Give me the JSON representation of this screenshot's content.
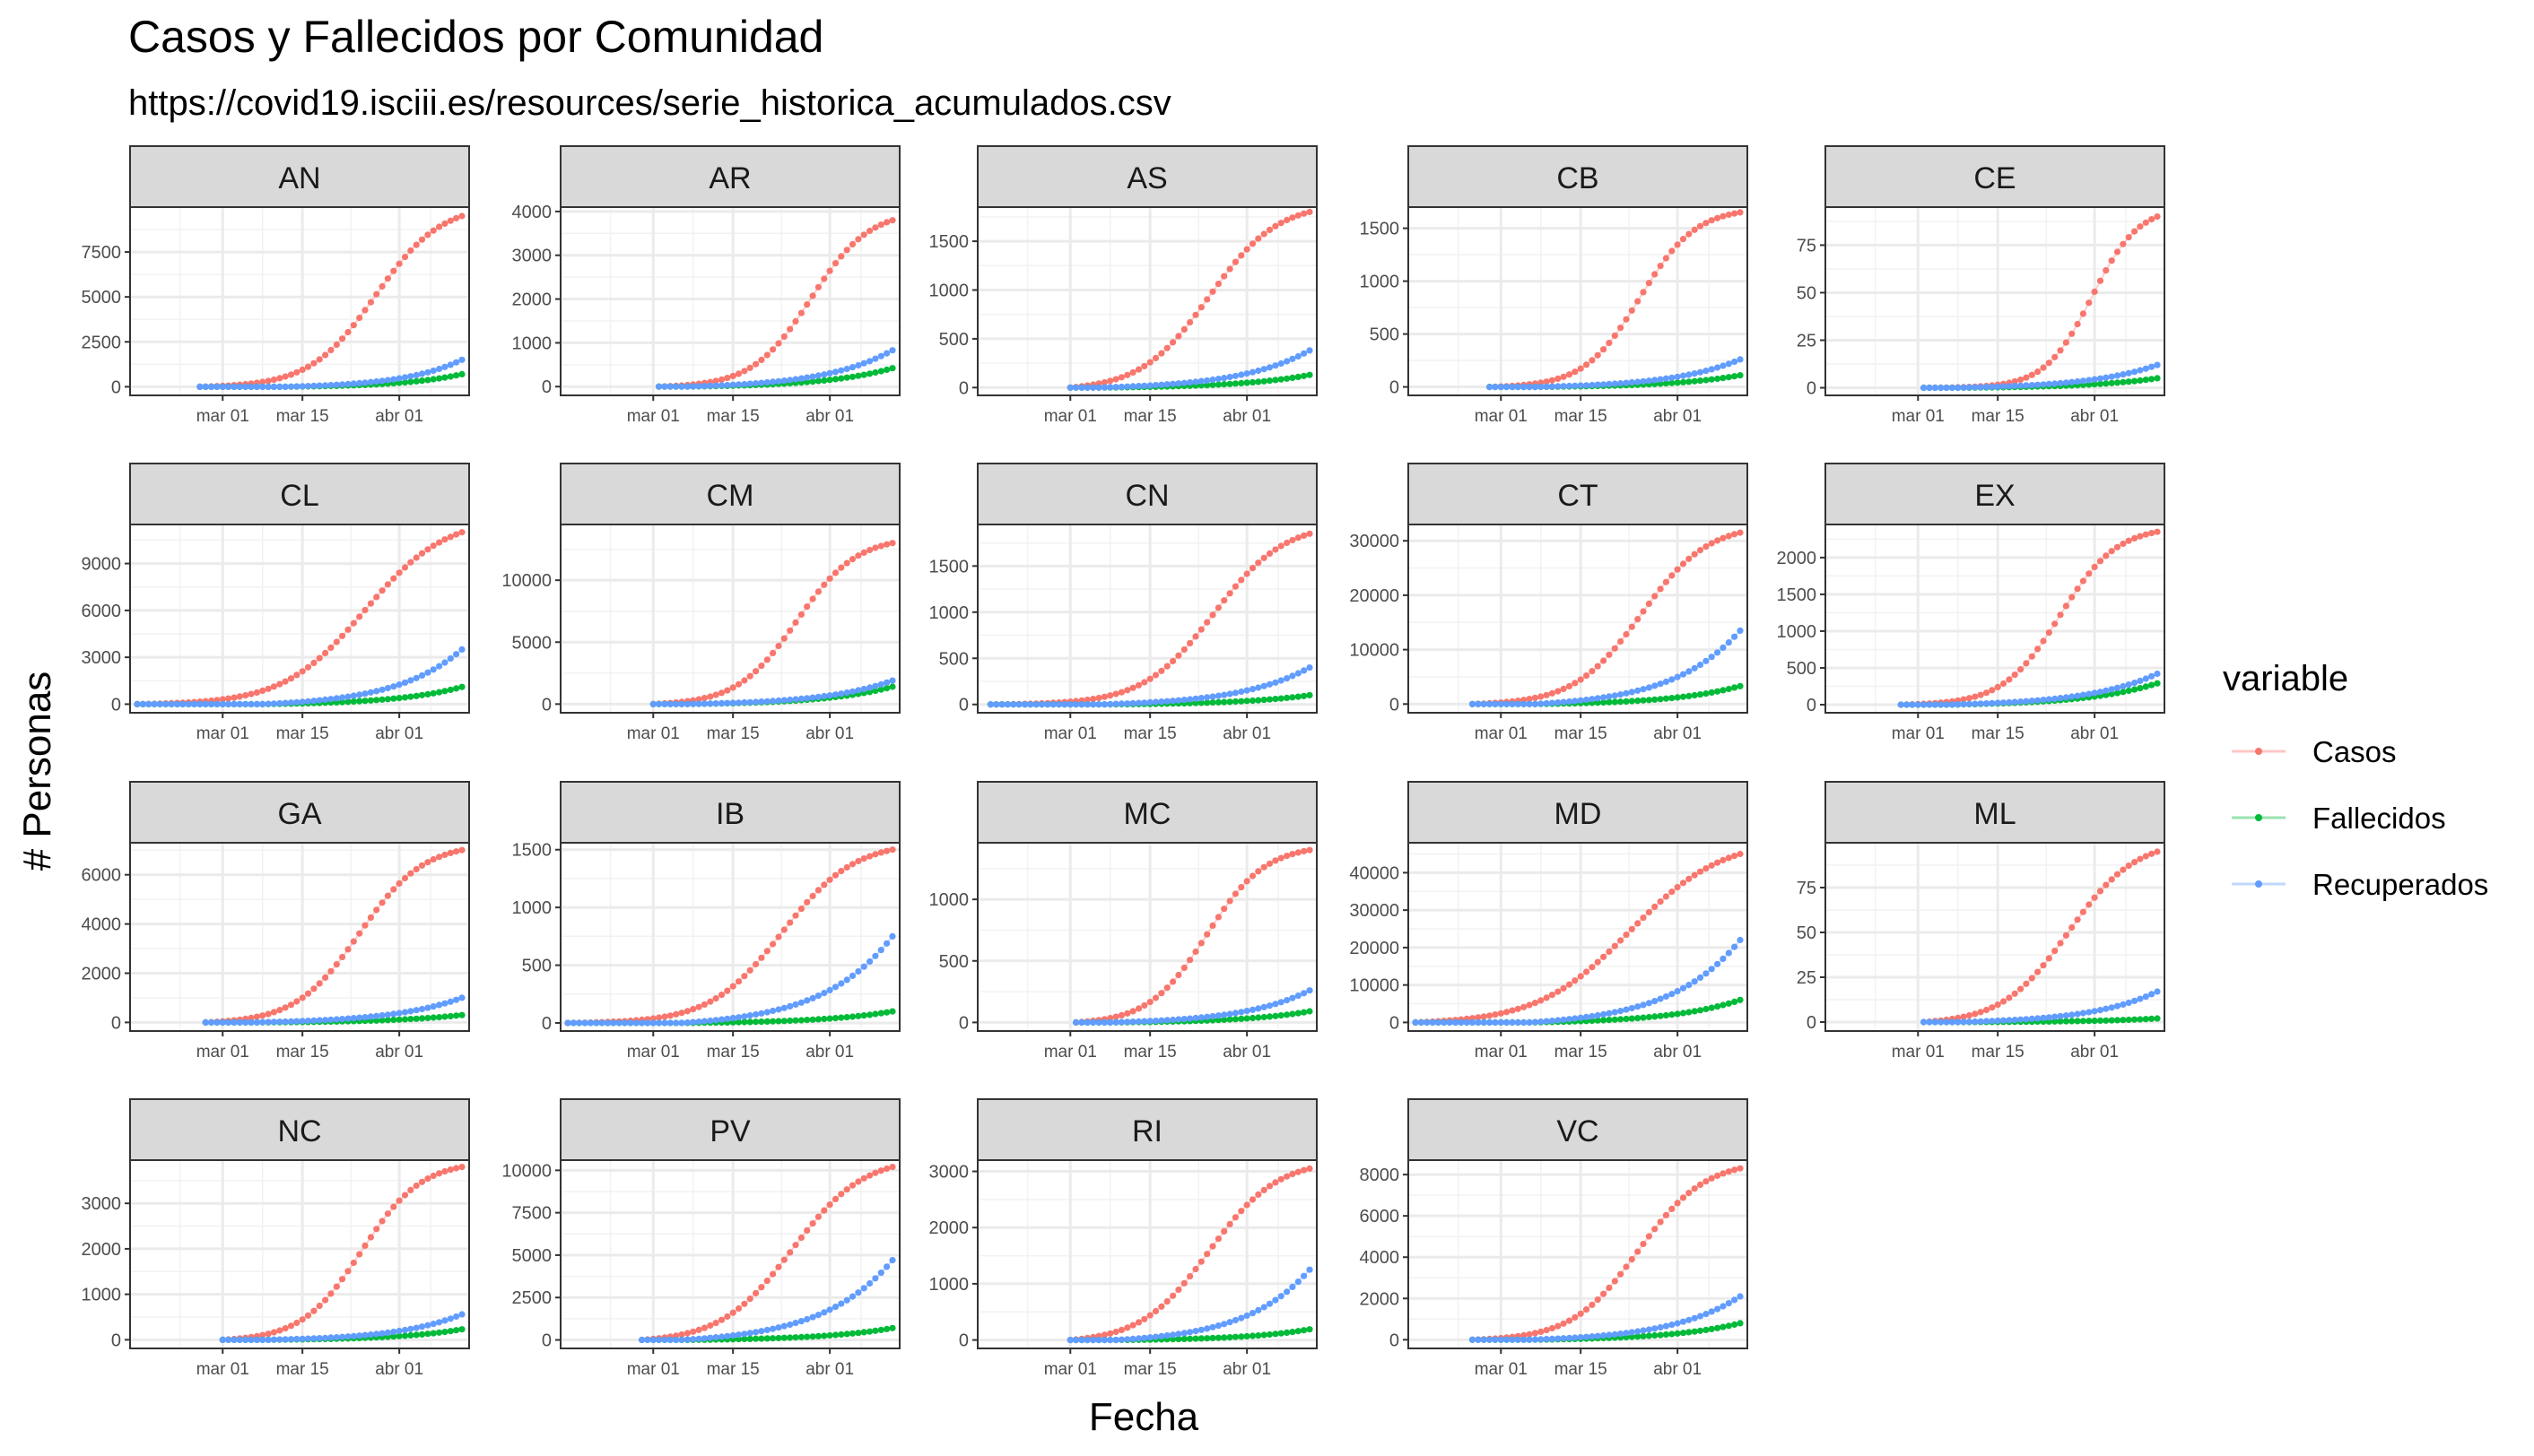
{
  "chart_data": {
    "type": "line",
    "title": "Casos y Fallecidos por Comunidad",
    "subtitle": "https://covid19.isciii.es/resources/serie_historica_acumulados.csv",
    "xlabel": "Fecha",
    "ylabel": "# Personas",
    "x_ticks": [
      "mar 01",
      "mar 15",
      "abr 01"
    ],
    "x_range": [
      "2020-02-15",
      "2020-04-12"
    ],
    "grid": true,
    "legend": {
      "title": "variable",
      "position": "right",
      "entries": [
        {
          "name": "Casos",
          "color": "#F8766D"
        },
        {
          "name": "Fallecidos",
          "color": "#00BA38"
        },
        {
          "name": "Recuperados",
          "color": "#619CFF"
        }
      ]
    },
    "panels": [
      {
        "label": "AN",
        "start": "2020-02-26",
        "y_ticks": [
          0,
          2500,
          5000,
          7500
        ],
        "ylim": [
          -480,
          10000
        ],
        "series": {
          "Casos": {
            "end": 9500,
            "shape": "sig",
            "mid": 0.67,
            "k": 8
          },
          "Fallecidos": {
            "end": 700,
            "shape": "exp",
            "start": "2020-03-12"
          },
          "Recuperados": {
            "end": 1500,
            "shape": "exp",
            "start": "2020-03-12"
          }
        }
      },
      {
        "label": "AR",
        "start": "2020-03-02",
        "y_ticks": [
          0,
          1000,
          2000,
          3000,
          4000
        ],
        "ylim": [
          -200,
          4100
        ],
        "series": {
          "Casos": {
            "end": 3800,
            "shape": "sig",
            "mid": 0.65,
            "k": 8
          },
          "Fallecidos": {
            "end": 420,
            "shape": "exp",
            "start": "2020-03-07"
          },
          "Recuperados": {
            "end": 830,
            "shape": "exp",
            "start": "2020-03-07"
          }
        }
      },
      {
        "label": "AS",
        "start": "2020-03-01",
        "y_ticks": [
          0,
          500,
          1000,
          1500
        ],
        "ylim": [
          -80,
          1850
        ],
        "series": {
          "Casos": {
            "end": 1800,
            "shape": "sig",
            "mid": 0.58,
            "k": 7
          },
          "Fallecidos": {
            "end": 130,
            "shape": "exp",
            "start": "2020-03-06"
          },
          "Recuperados": {
            "end": 380,
            "shape": "exp",
            "start": "2020-03-06"
          }
        }
      },
      {
        "label": "CB",
        "start": "2020-02-28",
        "y_ticks": [
          0,
          500,
          1000,
          1500
        ],
        "ylim": [
          -80,
          1700
        ],
        "series": {
          "Casos": {
            "end": 1650,
            "shape": "sig",
            "mid": 0.6,
            "k": 9
          },
          "Fallecidos": {
            "end": 110,
            "shape": "exp",
            "start": "2020-03-07"
          },
          "Recuperados": {
            "end": 260,
            "shape": "exp",
            "start": "2020-03-07"
          }
        }
      },
      {
        "label": "CE",
        "start": "2020-03-02",
        "y_ticks": [
          0,
          25,
          50,
          75
        ],
        "ylim": [
          -4,
          95
        ],
        "series": {
          "Casos": {
            "end": 90,
            "shape": "sig",
            "mid": 0.72,
            "k": 10
          },
          "Fallecidos": {
            "end": 5,
            "shape": "exp",
            "start": "2020-03-07"
          },
          "Recuperados": {
            "end": 12,
            "shape": "exp",
            "start": "2020-03-07"
          }
        }
      },
      {
        "label": "CL",
        "start": "2020-02-15",
        "y_ticks": [
          0,
          3000,
          6000,
          9000
        ],
        "ylim": [
          -550,
          11500
        ],
        "series": {
          "Casos": {
            "end": 11000,
            "shape": "sig",
            "mid": 0.7,
            "k": 8
          },
          "Fallecidos": {
            "end": 1100,
            "shape": "exp",
            "start": "2020-03-08"
          },
          "Recuperados": {
            "end": 3500,
            "shape": "exp",
            "start": "2020-03-08"
          }
        }
      },
      {
        "label": "CM",
        "start": "2020-03-01",
        "y_ticks": [
          0,
          5000,
          10000
        ],
        "ylim": [
          -700,
          14500
        ],
        "series": {
          "Casos": {
            "end": 13000,
            "shape": "sig",
            "mid": 0.6,
            "k": 8
          },
          "Fallecidos": {
            "end": 1400,
            "shape": "exp",
            "start": "2020-03-07"
          },
          "Recuperados": {
            "end": 1900,
            "shape": "exp",
            "start": "2020-03-07"
          }
        }
      },
      {
        "label": "CN",
        "start": "2020-02-16",
        "y_ticks": [
          0,
          500,
          1000,
          1500
        ],
        "ylim": [
          -90,
          1950
        ],
        "series": {
          "Casos": {
            "end": 1850,
            "shape": "sig",
            "mid": 0.7,
            "k": 9
          },
          "Fallecidos": {
            "end": 100,
            "shape": "exp",
            "start": "2020-03-06"
          },
          "Recuperados": {
            "end": 400,
            "shape": "exp",
            "start": "2020-03-06"
          }
        }
      },
      {
        "label": "CT",
        "start": "2020-02-25",
        "y_ticks": [
          0,
          10000,
          20000,
          30000
        ],
        "ylim": [
          -1600,
          33000
        ],
        "series": {
          "Casos": {
            "end": 31500,
            "shape": "sig",
            "mid": 0.63,
            "k": 8
          },
          "Fallecidos": {
            "end": 3300,
            "shape": "exp",
            "start": "2020-03-07"
          },
          "Recuperados": {
            "end": 13500,
            "shape": "exp",
            "start": "2020-03-07"
          }
        }
      },
      {
        "label": "EX",
        "start": "2020-02-27",
        "y_ticks": [
          0,
          500,
          1000,
          1500,
          2000
        ],
        "ylim": [
          -110,
          2450
        ],
        "series": {
          "Casos": {
            "end": 2350,
            "shape": "sig",
            "mid": 0.62,
            "k": 9
          },
          "Fallecidos": {
            "end": 290,
            "shape": "exp",
            "start": "2020-03-06"
          },
          "Recuperados": {
            "end": 420,
            "shape": "exp",
            "start": "2020-03-06"
          }
        }
      },
      {
        "label": "GA",
        "start": "2020-02-27",
        "y_ticks": [
          0,
          2000,
          4000,
          6000
        ],
        "ylim": [
          -350,
          7300
        ],
        "series": {
          "Casos": {
            "end": 7000,
            "shape": "sig",
            "mid": 0.6,
            "k": 8
          },
          "Fallecidos": {
            "end": 300,
            "shape": "exp",
            "start": "2020-03-06"
          },
          "Recuperados": {
            "end": 1000,
            "shape": "exp",
            "start": "2020-03-06"
          }
        }
      },
      {
        "label": "IB",
        "start": "2020-02-15",
        "y_ticks": [
          0,
          500,
          1000,
          1500
        ],
        "ylim": [
          -70,
          1560
        ],
        "series": {
          "Casos": {
            "end": 1500,
            "shape": "sig",
            "mid": 0.66,
            "k": 9
          },
          "Fallecidos": {
            "end": 100,
            "shape": "exp",
            "start": "2020-03-06"
          },
          "Recuperados": {
            "end": 750,
            "shape": "exp",
            "start": "2020-03-06"
          }
        }
      },
      {
        "label": "MC",
        "start": "2020-03-02",
        "y_ticks": [
          0,
          500,
          1000
        ],
        "ylim": [
          -70,
          1460
        ],
        "series": {
          "Casos": {
            "end": 1400,
            "shape": "sig",
            "mid": 0.56,
            "k": 8
          },
          "Fallecidos": {
            "end": 90,
            "shape": "exp",
            "start": "2020-03-08"
          },
          "Recuperados": {
            "end": 260,
            "shape": "exp",
            "start": "2020-03-08"
          }
        }
      },
      {
        "label": "MD",
        "start": "2020-02-15",
        "y_ticks": [
          0,
          10000,
          20000,
          30000,
          40000
        ],
        "ylim": [
          -2300,
          48000
        ],
        "series": {
          "Casos": {
            "end": 45000,
            "shape": "sig",
            "mid": 0.66,
            "k": 7
          },
          "Fallecidos": {
            "end": 6000,
            "shape": "exp",
            "start": "2020-03-06"
          },
          "Recuperados": {
            "end": 22000,
            "shape": "exp",
            "start": "2020-03-06"
          }
        }
      },
      {
        "label": "ML",
        "start": "2020-03-02",
        "y_ticks": [
          0,
          25,
          50,
          75
        ],
        "ylim": [
          -5,
          100
        ],
        "series": {
          "Casos": {
            "end": 95,
            "shape": "sig",
            "mid": 0.62,
            "k": 7
          },
          "Fallecidos": {
            "end": 2,
            "shape": "exp",
            "start": "2020-03-08"
          },
          "Recuperados": {
            "end": 17,
            "shape": "exp",
            "start": "2020-03-08"
          }
        }
      },
      {
        "label": "NC",
        "start": "2020-03-01",
        "y_ticks": [
          0,
          1000,
          2000,
          3000
        ],
        "ylim": [
          -190,
          3950
        ],
        "series": {
          "Casos": {
            "end": 3800,
            "shape": "sig",
            "mid": 0.58,
            "k": 8
          },
          "Fallecidos": {
            "end": 230,
            "shape": "exp",
            "start": "2020-03-09"
          },
          "Recuperados": {
            "end": 560,
            "shape": "exp",
            "start": "2020-03-09"
          }
        }
      },
      {
        "label": "PV",
        "start": "2020-02-28",
        "y_ticks": [
          0,
          2500,
          5000,
          7500,
          10000
        ],
        "ylim": [
          -500,
          10600
        ],
        "series": {
          "Casos": {
            "end": 10200,
            "shape": "sig",
            "mid": 0.6,
            "k": 7
          },
          "Fallecidos": {
            "end": 700,
            "shape": "exp",
            "start": "2020-03-06"
          },
          "Recuperados": {
            "end": 4700,
            "shape": "exp",
            "start": "2020-03-06"
          }
        }
      },
      {
        "label": "RI",
        "start": "2020-03-01",
        "y_ticks": [
          0,
          1000,
          2000,
          3000
        ],
        "ylim": [
          -150,
          3200
        ],
        "series": {
          "Casos": {
            "end": 3050,
            "shape": "sig",
            "mid": 0.58,
            "k": 7
          },
          "Fallecidos": {
            "end": 190,
            "shape": "exp",
            "start": "2020-03-09"
          },
          "Recuperados": {
            "end": 1250,
            "shape": "exp",
            "start": "2020-03-09"
          }
        }
      },
      {
        "label": "VC",
        "start": "2020-02-25",
        "y_ticks": [
          0,
          2000,
          4000,
          6000,
          8000
        ],
        "ylim": [
          -420,
          8700
        ],
        "series": {
          "Casos": {
            "end": 8300,
            "shape": "sig",
            "mid": 0.62,
            "k": 8
          },
          "Fallecidos": {
            "end": 800,
            "shape": "exp",
            "start": "2020-03-06"
          },
          "Recuperados": {
            "end": 2100,
            "shape": "exp",
            "start": "2020-03-06"
          }
        }
      }
    ]
  }
}
